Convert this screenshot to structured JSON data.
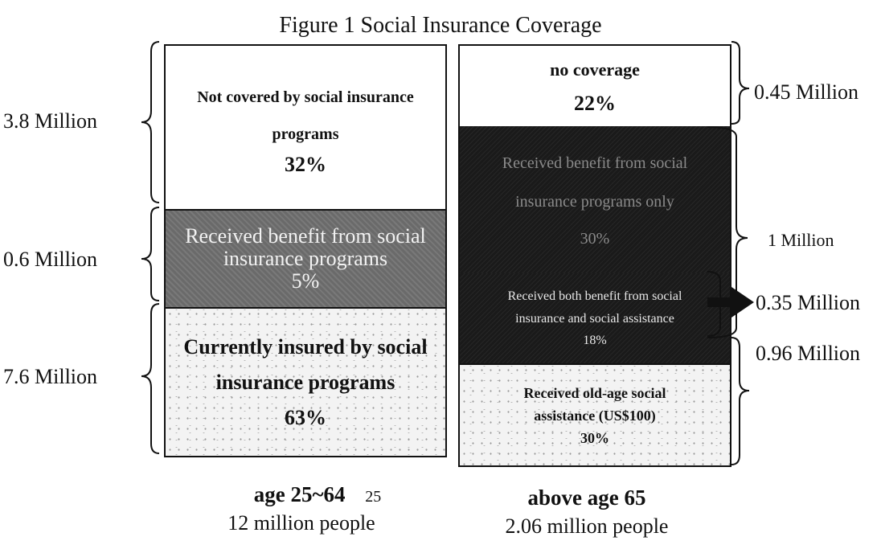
{
  "title": "Figure 1 Social Insurance Coverage",
  "left_column": {
    "caption": "age 25~64",
    "caption_note": "25",
    "population": "12 million people",
    "segments": [
      {
        "text_lines": [
          "Not covered by social insurance",
          "programs"
        ],
        "percent": "32%"
      },
      {
        "text_lines": [
          "Received benefit from social",
          "insurance programs"
        ],
        "percent": "5%"
      },
      {
        "text_lines": [
          "Currently insured by social",
          "insurance programs"
        ],
        "percent": "63%"
      }
    ],
    "brackets": [
      "3.8 Million",
      "0.6 Million",
      "7.6 Million"
    ]
  },
  "right_column": {
    "caption": "above age 65",
    "population": "2.06 million people",
    "segments": [
      {
        "text_lines": [
          "no coverage"
        ],
        "percent": "22%"
      },
      {
        "text_lines": [
          "Received benefit from social",
          "insurance programs only"
        ],
        "percent": "30%"
      },
      {
        "text_lines": [
          "Received both benefit from social",
          "insurance and social assistance"
        ],
        "percent": "18%"
      },
      {
        "text_lines": [
          "Received old-age social",
          "assistance (US$100)"
        ],
        "percent": "30%"
      }
    ],
    "brackets": [
      "0.45 Million",
      "1 Million",
      "0.35 Million",
      "0.96 Million"
    ]
  },
  "colors": {
    "white": "#ffffff",
    "gray": "#6a6a6a",
    "dark": "#1a1a1a",
    "speckled": "#f3f3f3",
    "ink": "#111111"
  }
}
